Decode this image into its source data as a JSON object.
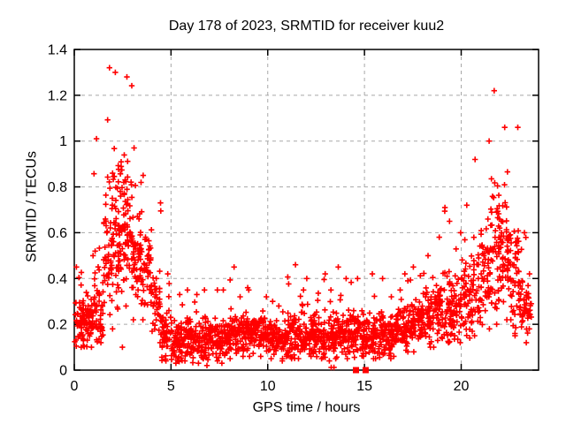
{
  "window": {
    "background": "#ffffff"
  },
  "chart_data": {
    "type": "scatter",
    "title": "Day 178 of 2023, SRMTID for receiver kuu2",
    "xlabel": "GPS time / hours",
    "ylabel": "SRMTID / TECUs",
    "xlim": [
      0,
      24
    ],
    "ylim": [
      0,
      1.4
    ],
    "xtick_values": [
      0,
      5,
      10,
      15,
      20
    ],
    "xtick_labels": [
      "0",
      "5",
      "10",
      "15",
      "20"
    ],
    "ytick_values": [
      0,
      0.2,
      0.4,
      0.6,
      0.8,
      1.0,
      1.2,
      1.4
    ],
    "ytick_labels": [
      "0",
      "0.2",
      "0.4",
      "0.6",
      "0.8",
      "1",
      "1.2",
      "1.4"
    ],
    "grid": {
      "visible": true,
      "style": "dashed",
      "color": "#a8a8a8"
    },
    "border_color": "#000000",
    "text_color": "#000000",
    "legend": "none",
    "random_seed": 20230178,
    "series": [
      {
        "name": "srmtid",
        "marker": "plus",
        "color": "#ff0000",
        "marker_size_px": 7,
        "approx_point_count": 2400,
        "density_bins_format": [
          "x_start",
          "x_end",
          "count",
          "y_min",
          "y_max",
          "y_typical"
        ],
        "density_bins": [
          [
            0.0,
            0.5,
            55,
            0.1,
            0.45,
            0.2
          ],
          [
            0.5,
            1.0,
            55,
            0.1,
            0.5,
            0.22
          ],
          [
            1.0,
            1.5,
            50,
            0.12,
            1.01,
            0.28
          ],
          [
            1.5,
            2.0,
            55,
            0.18,
            1.32,
            0.52
          ],
          [
            2.0,
            2.5,
            65,
            0.1,
            1.3,
            0.6
          ],
          [
            2.5,
            3.0,
            65,
            0.28,
            1.28,
            0.62
          ],
          [
            3.0,
            3.5,
            55,
            0.22,
            0.97,
            0.5
          ],
          [
            3.5,
            4.0,
            45,
            0.22,
            0.85,
            0.45
          ],
          [
            4.0,
            4.5,
            40,
            0.12,
            0.73,
            0.27
          ],
          [
            4.5,
            5.0,
            50,
            0.04,
            0.42,
            0.16
          ],
          [
            5.0,
            5.5,
            50,
            0.03,
            0.33,
            0.13
          ],
          [
            5.5,
            6.0,
            50,
            0.04,
            0.35,
            0.14
          ],
          [
            6.0,
            6.5,
            50,
            0.03,
            0.33,
            0.14
          ],
          [
            6.5,
            7.0,
            50,
            0.02,
            0.35,
            0.14
          ],
          [
            7.0,
            7.5,
            50,
            0.04,
            0.35,
            0.14
          ],
          [
            7.5,
            8.0,
            50,
            0.03,
            0.35,
            0.14
          ],
          [
            8.0,
            8.5,
            55,
            0.05,
            0.45,
            0.16
          ],
          [
            8.5,
            9.0,
            50,
            0.06,
            0.36,
            0.17
          ],
          [
            9.0,
            9.5,
            50,
            0.06,
            0.35,
            0.17
          ],
          [
            9.5,
            10.0,
            50,
            0.06,
            0.32,
            0.16
          ],
          [
            10.0,
            10.5,
            50,
            0.05,
            0.3,
            0.14
          ],
          [
            10.5,
            11.0,
            50,
            0.04,
            0.28,
            0.12
          ],
          [
            11.0,
            11.5,
            50,
            0.05,
            0.46,
            0.15
          ],
          [
            11.5,
            12.0,
            50,
            0.05,
            0.35,
            0.15
          ],
          [
            12.0,
            12.5,
            50,
            0.06,
            0.4,
            0.16
          ],
          [
            12.5,
            13.0,
            50,
            0.05,
            0.42,
            0.15
          ],
          [
            13.0,
            13.5,
            50,
            0.04,
            0.35,
            0.14
          ],
          [
            13.5,
            14.0,
            50,
            0.05,
            0.45,
            0.16
          ],
          [
            14.0,
            14.5,
            50,
            0.05,
            0.4,
            0.15
          ],
          [
            14.5,
            15.0,
            50,
            0.06,
            0.4,
            0.16
          ],
          [
            15.0,
            15.5,
            50,
            0.05,
            0.42,
            0.16
          ],
          [
            15.5,
            16.0,
            50,
            0.05,
            0.4,
            0.15
          ],
          [
            16.0,
            16.5,
            50,
            0.05,
            0.32,
            0.15
          ],
          [
            16.5,
            17.0,
            50,
            0.06,
            0.35,
            0.17
          ],
          [
            17.0,
            17.5,
            50,
            0.08,
            0.42,
            0.19
          ],
          [
            17.5,
            18.0,
            50,
            0.08,
            0.45,
            0.21
          ],
          [
            18.0,
            18.5,
            50,
            0.1,
            0.5,
            0.23
          ],
          [
            18.5,
            19.0,
            50,
            0.1,
            0.58,
            0.25
          ],
          [
            19.0,
            19.5,
            48,
            0.12,
            0.71,
            0.27
          ],
          [
            19.5,
            20.0,
            48,
            0.12,
            0.6,
            0.28
          ],
          [
            20.0,
            20.5,
            46,
            0.14,
            0.72,
            0.31
          ],
          [
            20.5,
            21.0,
            46,
            0.15,
            0.92,
            0.36
          ],
          [
            21.0,
            21.5,
            50,
            0.18,
            1.0,
            0.42
          ],
          [
            21.5,
            22.0,
            55,
            0.2,
            1.22,
            0.55
          ],
          [
            22.0,
            22.5,
            55,
            0.22,
            1.06,
            0.52
          ],
          [
            22.5,
            23.0,
            50,
            0.15,
            1.06,
            0.42
          ],
          [
            23.0,
            23.5,
            45,
            0.12,
            0.6,
            0.28
          ],
          [
            23.5,
            23.65,
            10,
            0.18,
            0.42,
            0.28
          ]
        ],
        "near_zero_points": [
          [
            13.28,
            0.012
          ],
          [
            13.42,
            0.012
          ]
        ]
      },
      {
        "name": "flagged",
        "marker": "filled-square",
        "color": "#ff0000",
        "marker_size_px": 7,
        "points": [
          [
            14.56,
            0.0
          ],
          [
            15.06,
            0.0
          ]
        ]
      }
    ]
  }
}
